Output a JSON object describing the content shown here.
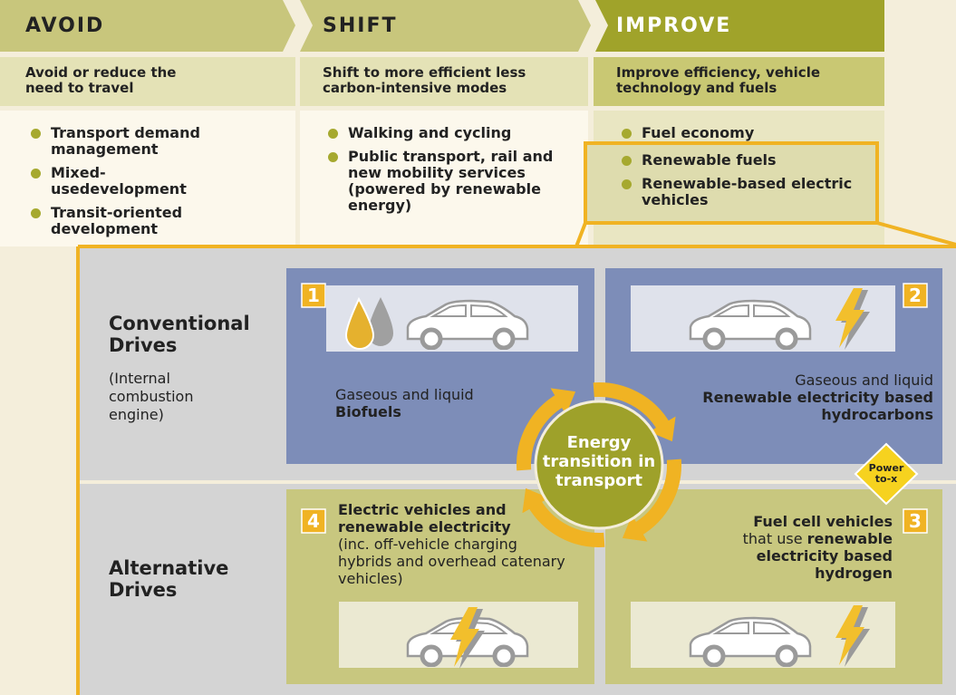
{
  "columns": [
    {
      "title": "AVOID",
      "subtitle": "Avoid or reduce the need to travel",
      "items": [
        "Transport demand management",
        "Mixed-usedevelopment",
        "Transit-oriented development"
      ]
    },
    {
      "title": "SHIFT",
      "subtitle": "Shift to more efficient less carbon-intensive modes",
      "items": [
        "Walking and cycling",
        "Public transport, rail and new mobility services (powered by renewable energy)"
      ]
    },
    {
      "title": "IMPROVE",
      "subtitle": "Improve efficiency, vehicle technology and fuels",
      "items": [
        "Fuel economy"
      ],
      "highlighted_items": [
        "Renewable fuels",
        "Renewable-based electric vehicles"
      ]
    }
  ],
  "rows": [
    {
      "title": "Conventional Drives",
      "note": "(Internal combustion engine)"
    },
    {
      "title": "Alternative Drives"
    }
  ],
  "center": "Energy transition in transport",
  "badge": "Power to-x",
  "quadrants": [
    {
      "number": "1",
      "parts": [
        {
          "text": "Gaseous and liquid",
          "bold": false
        },
        {
          "text": "Biofuels",
          "bold": true
        }
      ]
    },
    {
      "number": "2",
      "parts": [
        {
          "text": "Gaseous and liquid",
          "bold": false
        },
        {
          "text": "Renewable electricity based hydrocarbons",
          "bold": true
        }
      ]
    },
    {
      "number": "3",
      "parts": [
        {
          "text": "Fuel cell vehicles",
          "bold": true
        },
        {
          "text": "that use",
          "bold": false
        },
        {
          "text": "renewable electricity based hydrogen",
          "bold": true
        }
      ]
    },
    {
      "number": "4",
      "parts": [
        {
          "text": "Electric vehicles and renewable electricity",
          "bold": true
        },
        {
          "text": "(inc. off-vehicle charging hybrids and overhead catenary vehicles)",
          "bold": false
        }
      ]
    }
  ]
}
